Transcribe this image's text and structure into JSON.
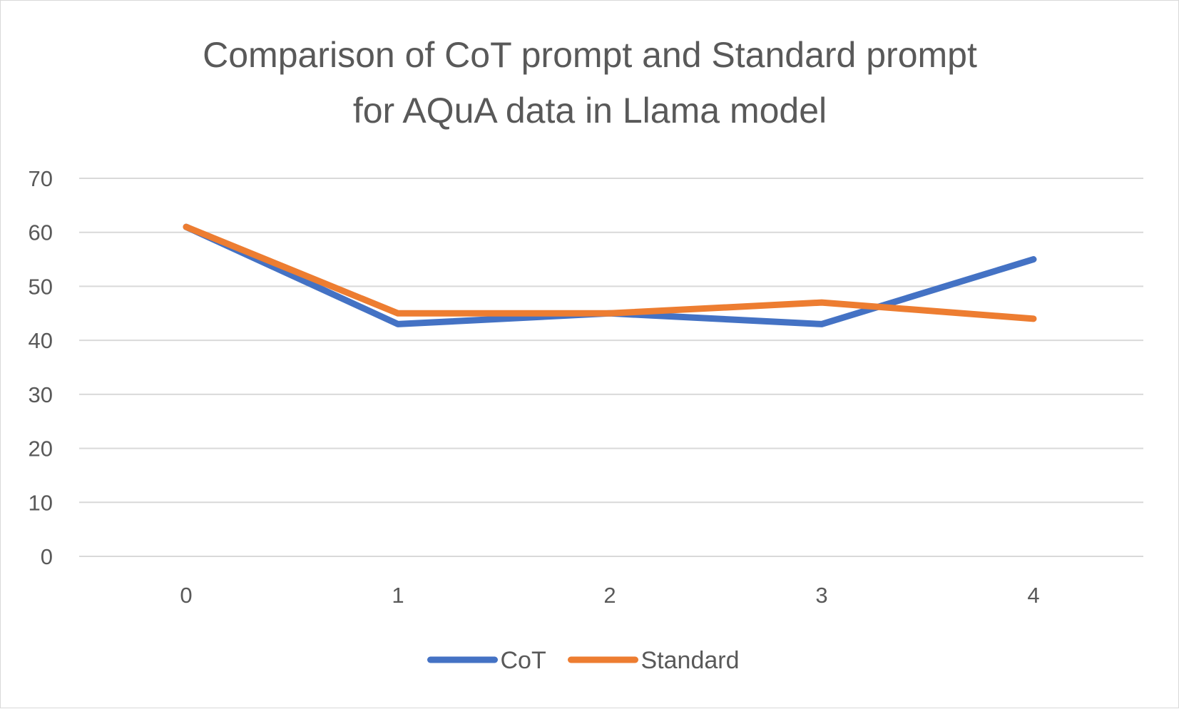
{
  "chart_data": {
    "type": "line",
    "title": [
      "Comparison of CoT prompt and Standard prompt",
      "for AQuA data in Llama model"
    ],
    "xlabel": "",
    "ylabel": "",
    "x": [
      0,
      1,
      2,
      3,
      4
    ],
    "ylim": [
      0,
      70
    ],
    "yticks": [
      0,
      10,
      20,
      30,
      40,
      50,
      60,
      70
    ],
    "grid": true,
    "legend_position": "bottom",
    "series": [
      {
        "name": "CoT",
        "color": "#4472c4",
        "values": [
          61,
          43,
          45,
          43,
          55
        ]
      },
      {
        "name": "Standard",
        "color": "#ed7d31",
        "values": [
          61,
          45,
          45,
          47,
          44
        ]
      }
    ]
  }
}
